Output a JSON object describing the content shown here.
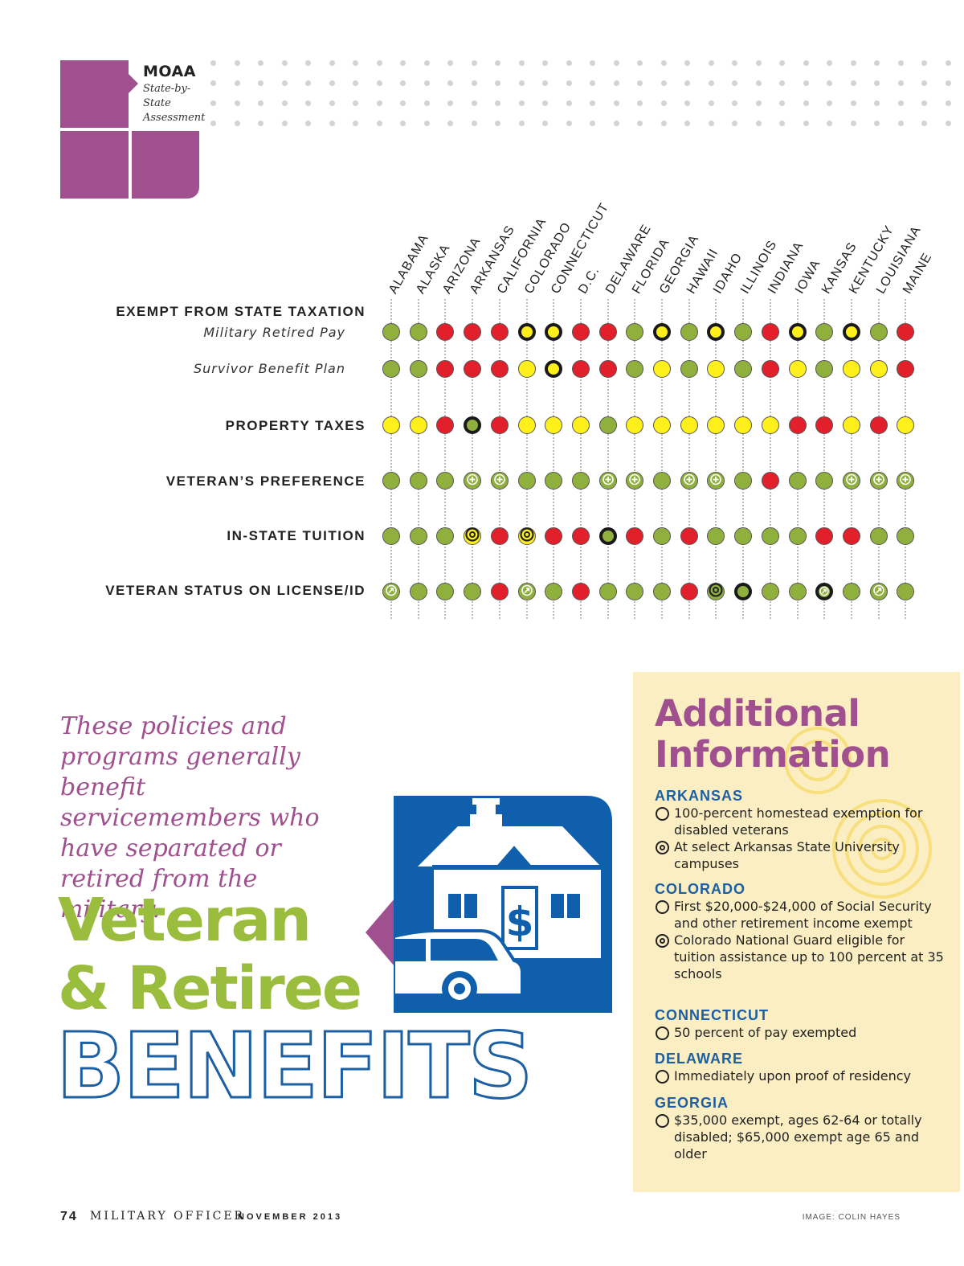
{
  "header": {
    "brand": "MOAA",
    "subtitle": "State-by-State Assessment"
  },
  "chart_data": {
    "type": "table",
    "states": [
      "ALABAMA",
      "ALASKA",
      "ARIZONA",
      "ARKANSAS",
      "CALIFORNIA",
      "COLORADO",
      "CONNECTICUT",
      "D.C.",
      "DELAWARE",
      "FLORIDA",
      "GEORGIA",
      "HAWAII",
      "IDAHO",
      "ILLINOIS",
      "INDIANA",
      "IOWA",
      "KANSAS",
      "KENTUCKY",
      "LOUISIANA",
      "MAINE"
    ],
    "rows": [
      {
        "group": "EXEMPT FROM STATE TAXATION",
        "label": "Military Retired Pay",
        "values": [
          "G",
          "G",
          "R",
          "R",
          "R",
          "Y*",
          "Y*",
          "R",
          "R",
          "G",
          "Y*",
          "G",
          "Y*",
          "G",
          "R",
          "Y*",
          "G",
          "Y*",
          "G",
          "R"
        ]
      },
      {
        "group": "",
        "label": "Survivor Benefit Plan",
        "values": [
          "G",
          "G",
          "R",
          "R",
          "R",
          "Y",
          "Y*",
          "R",
          "R",
          "G",
          "Y",
          "G",
          "Y",
          "G",
          "R",
          "Y",
          "G",
          "Y",
          "Y",
          "R"
        ]
      },
      {
        "group": "PROPERTY TAXES",
        "label": "",
        "values": [
          "Y",
          "Y",
          "R",
          "G*",
          "R",
          "Y",
          "Y",
          "Y",
          "G",
          "Y",
          "Y",
          "Y",
          "Y",
          "Y",
          "Y",
          "R",
          "R",
          "Y",
          "R",
          "Y"
        ]
      },
      {
        "group": "VETERAN’S PREFERENCE",
        "label": "",
        "values": [
          "G",
          "G",
          "G",
          "G+",
          "G+",
          "G",
          "G",
          "G",
          "G+",
          "G+",
          "G",
          "G+",
          "G+",
          "G",
          "R",
          "G",
          "G",
          "G+",
          "G+",
          "G+"
        ]
      },
      {
        "group": "IN-STATE TUITION",
        "label": "",
        "values": [
          "G",
          "G",
          "G",
          "Yo",
          "R",
          "Yo",
          "R",
          "R",
          "G*",
          "R",
          "G",
          "R",
          "G",
          "G",
          "G",
          "G",
          "R",
          "R",
          "G",
          "G"
        ]
      },
      {
        "group": "VETERAN STATUS ON LICENSE/ID",
        "label": "",
        "values": [
          "Ga",
          "G",
          "G",
          "G",
          "R",
          "Ga",
          "G",
          "R",
          "G",
          "G",
          "G",
          "R",
          "Go",
          "G*",
          "G",
          "G",
          "Gk",
          "G",
          "Ga",
          "G"
        ]
      }
    ],
    "legend_codes": {
      "G": "green",
      "R": "red",
      "Y": "yellow",
      "*": "bold outline",
      "+": "plus symbol",
      "o": "target symbol",
      "a": "arrow symbol",
      "k": "dark target symbol"
    },
    "colors": {
      "green": "#8fb03d",
      "red": "#e2202c",
      "yellow": "#ffef1a"
    }
  },
  "intro": "These policies and programs generally benefit servicemembers who have separated or retired from the military.",
  "headline": {
    "line1": "Veteran",
    "line2": "& Retiree",
    "line3": "BENEFITS"
  },
  "sidebar": {
    "title_line1": "Additional",
    "title_line2": "Information",
    "sections": [
      {
        "state": "ARKANSAS",
        "items": [
          {
            "bullet": "circle",
            "text": "100-percent homestead exemption for disabled veterans"
          },
          {
            "bullet": "target",
            "text": "At select Arkansas State University campuses"
          }
        ]
      },
      {
        "state": "COLORADO",
        "items": [
          {
            "bullet": "circle",
            "text": "First $20,000-$24,000 of Social Security and other retirement income exempt"
          },
          {
            "bullet": "target",
            "text": "Colorado National Guard eligible for tuition assistance up to 100 percent at 35 schools"
          }
        ]
      },
      {
        "state": "CONNECTICUT",
        "items": [
          {
            "bullet": "circle",
            "text": "50 percent of pay exempted"
          }
        ]
      },
      {
        "state": "DELAWARE",
        "items": [
          {
            "bullet": "circle",
            "text": "Immediately upon proof of residency"
          }
        ]
      },
      {
        "state": "GEORGIA",
        "items": [
          {
            "bullet": "circle",
            "text": "$35,000 exempt, ages 62-64 or totally disabled; $65,000 exempt age 65 and older"
          }
        ]
      }
    ]
  },
  "footer": {
    "page": "74",
    "magazine": "MILITARY OFFICER",
    "issue": "NOVEMBER 2013",
    "credit": "IMAGE: COLIN HAYES"
  }
}
